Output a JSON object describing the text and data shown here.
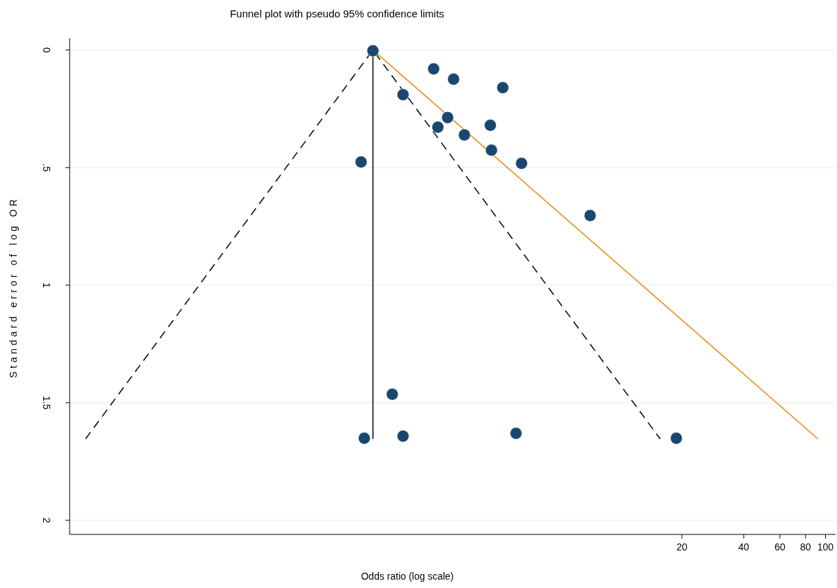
{
  "chart_data": {
    "type": "scatter",
    "title": "Funnel plot with pseudo 95% confidence limits",
    "xlabel": "Odds ratio (log scale)",
    "ylabel": "Standard error of log OR",
    "log": "x",
    "xlim": [
      0.021,
      112
    ],
    "xticks": [
      20,
      40,
      60,
      80,
      100
    ],
    "ylim": [
      2.06,
      -0.05
    ],
    "yticks": [
      {
        "value": 0,
        "label": "0"
      },
      {
        "value": 0.5,
        "label": ".5"
      },
      {
        "value": 1,
        "label": "1"
      },
      {
        "value": 1.5,
        "label": "1.5"
      },
      {
        "value": 2,
        "label": "2"
      }
    ],
    "grid": "y",
    "series": [
      {
        "type": "line",
        "color": "#000000",
        "line_style": "dashed",
        "x": [
          0.0251,
          0.628,
          15.7
        ],
        "values": [
          1.654,
          0,
          1.654
        ]
      },
      {
        "type": "line",
        "color": "#000000",
        "line_style": "solid",
        "x": [
          0.628,
          0.628
        ],
        "values": [
          0,
          1.654
        ]
      },
      {
        "type": "line",
        "color": "#e8880c",
        "line_style": "solid",
        "x": [
          0.628,
          91.9
        ],
        "values": [
          0,
          1.654
        ]
      },
      {
        "color": "#1a476f",
        "marker": "circle",
        "x": [
          0.628,
          1.24,
          1.55,
          2.69,
          0.88,
          1.45,
          1.3,
          2.34,
          1.75,
          2.37,
          0.55,
          3.32,
          7.16,
          0.78,
          0.57,
          0.88,
          3.12,
          18.8
        ],
        "values": [
          0.003,
          0.08,
          0.124,
          0.16,
          0.19,
          0.287,
          0.328,
          0.32,
          0.361,
          0.426,
          0.476,
          0.482,
          0.704,
          1.464,
          1.651,
          1.642,
          1.63,
          1.651
        ]
      }
    ]
  }
}
